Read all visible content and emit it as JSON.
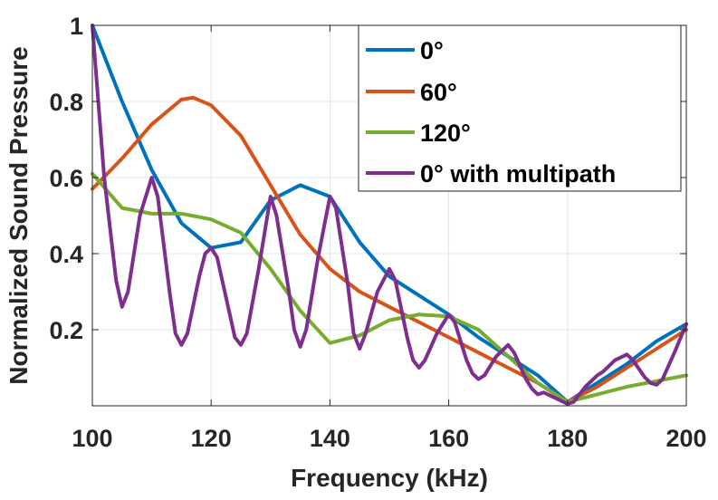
{
  "chart_data": {
    "type": "line",
    "title": "",
    "xlabel": "Frequency (kHz)",
    "ylabel": "Normalized Sound Pressure",
    "xlim": [
      100,
      200
    ],
    "ylim": [
      0,
      1
    ],
    "grid": true,
    "legend_position": "top-right",
    "x_ticks": [
      {
        "value": 100,
        "label": "100"
      },
      {
        "value": 120,
        "label": "120"
      },
      {
        "value": 140,
        "label": "140"
      },
      {
        "value": 160,
        "label": "160"
      },
      {
        "value": 180,
        "label": "180"
      },
      {
        "value": 200,
        "label": "200"
      }
    ],
    "y_ticks": [
      {
        "value": 0.2,
        "label": "0.2"
      },
      {
        "value": 0.4,
        "label": "0.4"
      },
      {
        "value": 0.6,
        "label": "0.6"
      },
      {
        "value": 0.8,
        "label": "0.8"
      },
      {
        "value": 1.0,
        "label": "1"
      }
    ],
    "series": [
      {
        "name": "0°",
        "color": "#0072BD",
        "points": [
          [
            100,
            1.0
          ],
          [
            105,
            0.8
          ],
          [
            110,
            0.62
          ],
          [
            115,
            0.48
          ],
          [
            120,
            0.415
          ],
          [
            125,
            0.43
          ],
          [
            130,
            0.54
          ],
          [
            135,
            0.58
          ],
          [
            140,
            0.55
          ],
          [
            145,
            0.43
          ],
          [
            150,
            0.34
          ],
          [
            155,
            0.29
          ],
          [
            160,
            0.24
          ],
          [
            165,
            0.18
          ],
          [
            170,
            0.13
          ],
          [
            175,
            0.08
          ],
          [
            180,
            0.01
          ],
          [
            185,
            0.06
          ],
          [
            190,
            0.11
          ],
          [
            195,
            0.17
          ],
          [
            200,
            0.215
          ]
        ]
      },
      {
        "name": "60°",
        "color": "#D95319",
        "points": [
          [
            100,
            0.57
          ],
          [
            105,
            0.65
          ],
          [
            110,
            0.74
          ],
          [
            115,
            0.805
          ],
          [
            117,
            0.81
          ],
          [
            120,
            0.79
          ],
          [
            125,
            0.71
          ],
          [
            130,
            0.58
          ],
          [
            135,
            0.45
          ],
          [
            140,
            0.36
          ],
          [
            145,
            0.3
          ],
          [
            150,
            0.26
          ],
          [
            155,
            0.22
          ],
          [
            160,
            0.18
          ],
          [
            165,
            0.14
          ],
          [
            170,
            0.1
          ],
          [
            175,
            0.06
          ],
          [
            180,
            0.01
          ],
          [
            185,
            0.05
          ],
          [
            190,
            0.1
          ],
          [
            195,
            0.15
          ],
          [
            200,
            0.2
          ]
        ]
      },
      {
        "name": "120°",
        "color": "#77AC30",
        "points": [
          [
            100,
            0.61
          ],
          [
            105,
            0.52
          ],
          [
            110,
            0.505
          ],
          [
            115,
            0.505
          ],
          [
            120,
            0.49
          ],
          [
            125,
            0.455
          ],
          [
            130,
            0.36
          ],
          [
            135,
            0.25
          ],
          [
            140,
            0.165
          ],
          [
            145,
            0.185
          ],
          [
            150,
            0.225
          ],
          [
            155,
            0.24
          ],
          [
            160,
            0.235
          ],
          [
            165,
            0.2
          ],
          [
            170,
            0.13
          ],
          [
            175,
            0.06
          ],
          [
            180,
            0.01
          ],
          [
            185,
            0.03
          ],
          [
            190,
            0.05
          ],
          [
            195,
            0.065
          ],
          [
            200,
            0.08
          ]
        ]
      },
      {
        "name": "0° with multipath",
        "color": "#7E2F8E",
        "points": [
          [
            100,
            1.0
          ],
          [
            102,
            0.6
          ],
          [
            104,
            0.33
          ],
          [
            105,
            0.26
          ],
          [
            106,
            0.3
          ],
          [
            108,
            0.5
          ],
          [
            110,
            0.6
          ],
          [
            111,
            0.55
          ],
          [
            113,
            0.3
          ],
          [
            114,
            0.19
          ],
          [
            115,
            0.16
          ],
          [
            116,
            0.19
          ],
          [
            118,
            0.34
          ],
          [
            119,
            0.4
          ],
          [
            120,
            0.415
          ],
          [
            121,
            0.39
          ],
          [
            123,
            0.25
          ],
          [
            124,
            0.18
          ],
          [
            125,
            0.16
          ],
          [
            126,
            0.19
          ],
          [
            128,
            0.36
          ],
          [
            130,
            0.55
          ],
          [
            131,
            0.5
          ],
          [
            133,
            0.31
          ],
          [
            134,
            0.2
          ],
          [
            135,
            0.155
          ],
          [
            136,
            0.2
          ],
          [
            138,
            0.39
          ],
          [
            140,
            0.55
          ],
          [
            141,
            0.52
          ],
          [
            143,
            0.32
          ],
          [
            144,
            0.19
          ],
          [
            145,
            0.15
          ],
          [
            146,
            0.19
          ],
          [
            148,
            0.3
          ],
          [
            150,
            0.36
          ],
          [
            151,
            0.33
          ],
          [
            153,
            0.18
          ],
          [
            154,
            0.12
          ],
          [
            155,
            0.1
          ],
          [
            156,
            0.12
          ],
          [
            158,
            0.19
          ],
          [
            160,
            0.24
          ],
          [
            161,
            0.22
          ],
          [
            163,
            0.12
          ],
          [
            164,
            0.085
          ],
          [
            165,
            0.07
          ],
          [
            166,
            0.08
          ],
          [
            168,
            0.13
          ],
          [
            170,
            0.16
          ],
          [
            171,
            0.14
          ],
          [
            173,
            0.07
          ],
          [
            174,
            0.045
          ],
          [
            175,
            0.03
          ],
          [
            176,
            0.035
          ],
          [
            178,
            0.02
          ],
          [
            180,
            0.005
          ],
          [
            181,
            0.01
          ],
          [
            183,
            0.05
          ],
          [
            185,
            0.08
          ],
          [
            186,
            0.09
          ],
          [
            188,
            0.12
          ],
          [
            190,
            0.135
          ],
          [
            191,
            0.12
          ],
          [
            193,
            0.075
          ],
          [
            194,
            0.06
          ],
          [
            195,
            0.055
          ],
          [
            196,
            0.07
          ],
          [
            198,
            0.14
          ],
          [
            200,
            0.215
          ]
        ]
      }
    ]
  }
}
